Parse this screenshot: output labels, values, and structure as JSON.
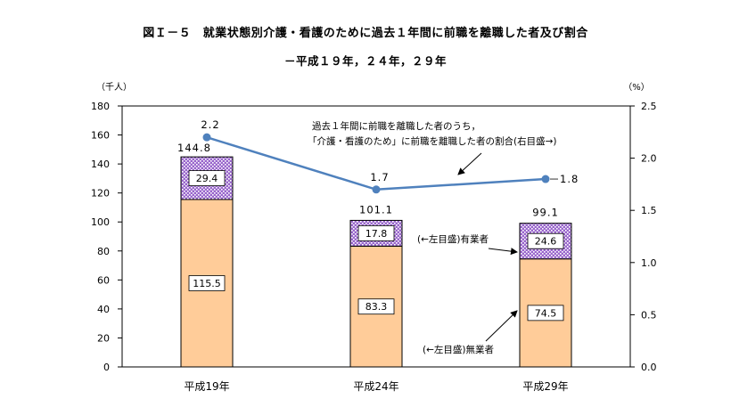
{
  "page": {
    "title": "図Ｉ－５　就業状態別介護・看護のために過去１年間に前職を離職した者及び割合",
    "subtitle": "－平成１９年，２４年，２９年"
  },
  "chart_data": {
    "type": "bar",
    "stacked": true,
    "categories": [
      "平成19年",
      "平成24年",
      "平成29年"
    ],
    "series": [
      {
        "name": "(←左目盛)無業者",
        "values": [
          115.5,
          83.3,
          74.5
        ],
        "axis": "left",
        "color": "#FFCC99"
      },
      {
        "name": "(←左目盛)有業者",
        "values": [
          29.4,
          17.8,
          24.6
        ],
        "axis": "left",
        "color": "#9966CC"
      }
    ],
    "totals": [
      "144.8",
      "101.1",
      "99.1"
    ],
    "line": {
      "name": "過去１年間に前職を離職した者のうち，「介護・看護のため」に前職を離職した者の割合(右目盛→)",
      "label_lines": [
        "過去１年間に前職を離職した者のうち，",
        "「介護・看護のため」に前職を離職した者の割合(右目盛→)"
      ],
      "values": [
        2.2,
        1.7,
        1.8
      ],
      "labels": [
        "2.2",
        "1.7",
        "1.8"
      ],
      "axis": "right",
      "color": "#4F81BD"
    },
    "bar_labels": {
      "lower": [
        "115.5",
        "83.3",
        "74.5"
      ],
      "upper": [
        "29.4",
        "17.8",
        "24.6"
      ]
    },
    "y_left": {
      "label": "（千人）",
      "min": 0,
      "max": 180,
      "step": 20,
      "ticks": [
        "0",
        "20",
        "40",
        "60",
        "80",
        "100",
        "120",
        "140",
        "160",
        "180"
      ]
    },
    "y_right": {
      "label": "（%）",
      "min": 0,
      "max": 2.5,
      "step": 0.5,
      "ticks": [
        "0.0",
        "0.5",
        "1.0",
        "1.5",
        "2.0",
        "2.5"
      ]
    },
    "grid": false,
    "legend": "annotations"
  }
}
